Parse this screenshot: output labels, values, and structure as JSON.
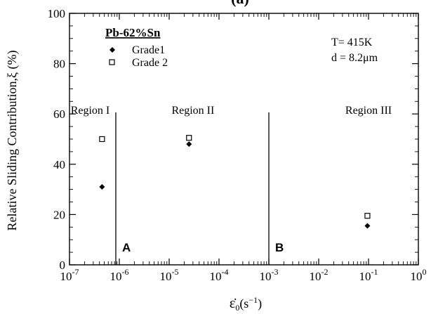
{
  "chart_data": {
    "type": "scatter",
    "panel_label": "(a)",
    "xscale": "log",
    "xlim": [
      1e-07,
      1
    ],
    "ylim": [
      0,
      100
    ],
    "x_tick_labels": [
      {
        "base": "10",
        "exp": "-7"
      },
      {
        "base": "10",
        "exp": "-6"
      },
      {
        "base": "10",
        "exp": "-5"
      },
      {
        "base": "10",
        "exp": "-4"
      },
      {
        "base": "10",
        "exp": "-3"
      },
      {
        "base": "10",
        "exp": "-2"
      },
      {
        "base": "10",
        "exp": "-1"
      },
      {
        "base": "10",
        "exp": "0"
      }
    ],
    "y_ticks": [
      0,
      20,
      40,
      60,
      80,
      100
    ],
    "ylabel": "Relative Sliding Contribution,ξ (%)",
    "xlabel": {
      "symbol": "ε̇",
      "sub": "0",
      "unit_pre": "(s",
      "unit_exp": "−1",
      "unit_post": ")"
    },
    "legend": {
      "title": "Pb-62%Sn",
      "position": "top-left",
      "entries": [
        {
          "label": "Grade1",
          "marker": "filled-diamond"
        },
        {
          "label": "Grade 2",
          "marker": "open-square"
        }
      ]
    },
    "series": [
      {
        "name": "Grade1",
        "marker": "filled-diamond",
        "color": "#000000",
        "points": [
          {
            "x": 4.5e-07,
            "y": 31
          },
          {
            "x": 2.5e-05,
            "y": 48
          },
          {
            "x": 0.095,
            "y": 15.5
          }
        ]
      },
      {
        "name": "Grade 2",
        "marker": "open-square",
        "color": "#000000",
        "points": [
          {
            "x": 4.5e-07,
            "y": 50
          },
          {
            "x": 2.5e-05,
            "y": 50.5
          },
          {
            "x": 0.095,
            "y": 19.5
          }
        ]
      }
    ],
    "annotations": {
      "conditions": [
        "T= 415K",
        "d = 8.2μm"
      ],
      "regions": [
        {
          "label": "Region I",
          "x": 2.6e-07
        },
        {
          "label": "Region II",
          "x": 3e-05
        },
        {
          "label": "Region III",
          "x": 0.1
        }
      ],
      "boundaries": [
        {
          "label": "A",
          "x": 8.5e-07
        },
        {
          "label": "B",
          "x": 0.001
        }
      ]
    }
  }
}
